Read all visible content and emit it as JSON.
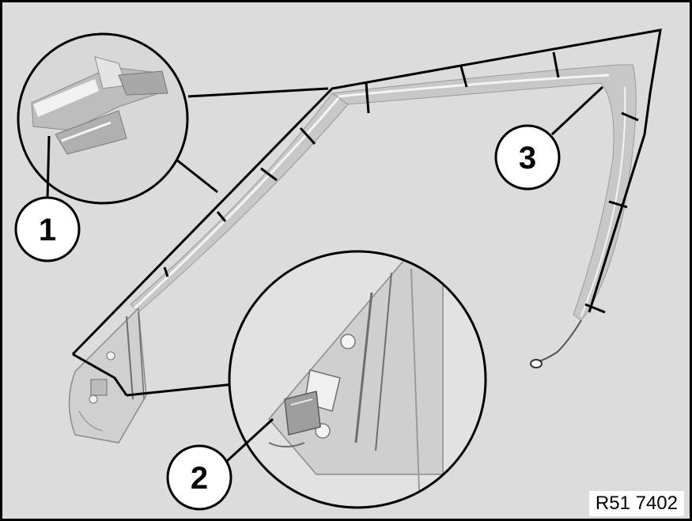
{
  "callouts": [
    {
      "id": "1",
      "label": "1"
    },
    {
      "id": "2",
      "label": "2"
    },
    {
      "id": "3",
      "label": "3"
    }
  ],
  "reference_code": "R51 7402",
  "colors": {
    "background": "#dcdcdc",
    "frame_border": "#000000",
    "strip": "#c8c8c8",
    "strip_edge": "#f4f4f4",
    "detail_dark": "#6e6e6e",
    "line": "#000000"
  }
}
